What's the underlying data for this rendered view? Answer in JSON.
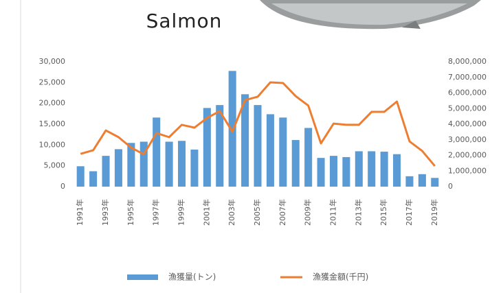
{
  "chart_data": {
    "type": "bar",
    "title": "Salmon",
    "categories": [
      "1991年",
      null,
      "1993年",
      null,
      "1995年",
      null,
      "1997年",
      null,
      "1999年",
      null,
      "2001年",
      null,
      "2003年",
      null,
      "2005年",
      null,
      "2007年",
      null,
      "2009年",
      null,
      "2011年",
      null,
      "2013年",
      null,
      "2015年",
      null,
      "2017年",
      null,
      "2019年"
    ],
    "series": [
      {
        "name": "漁獲量(トン)",
        "type": "bar",
        "color": "#5b9bd5",
        "values": [
          4900,
          3700,
          7400,
          9000,
          10500,
          10800,
          16600,
          10800,
          11000,
          8900,
          18900,
          19600,
          27800,
          22200,
          19600,
          17400,
          16600,
          11200,
          14100,
          6900,
          7400,
          7100,
          8500,
          8500,
          8400,
          7800,
          2500,
          3000,
          2100
        ]
      },
      {
        "name": "漁獲金額(千円)",
        "type": "line",
        "axis": "y2",
        "color": "#ed7d31",
        "values": [
          2100000,
          2330000,
          3600000,
          3170000,
          2500000,
          2070000,
          3430000,
          3170000,
          3960000,
          3780000,
          4400000,
          4840000,
          3520000,
          5540000,
          5760000,
          6680000,
          6640000,
          5800000,
          5190000,
          2770000,
          4040000,
          3960000,
          3960000,
          4790000,
          4790000,
          5450000,
          2900000,
          2290000,
          1320000
        ]
      }
    ],
    "ylim": [
      0,
      30000
    ],
    "yticks": [
      0,
      {
        "value": 5000,
        "label": "5,000"
      },
      {
        "value": 10000,
        "label": "10,000"
      },
      {
        "value": 15000,
        "label": "15,000"
      },
      {
        "value": 20000,
        "label": "20,000"
      },
      {
        "value": 25000,
        "label": "25,000"
      },
      {
        "value": 30000,
        "label": "30,000"
      }
    ],
    "y2lim": [
      0,
      8000000
    ],
    "y2ticks": [
      0,
      {
        "value": 1000000,
        "label": "1,000,000"
      },
      {
        "value": 2000000,
        "label": "2,000,000"
      },
      {
        "value": 3000000,
        "label": "3,000,000"
      },
      {
        "value": 4000000,
        "label": "4,000,000"
      },
      {
        "value": 5000000,
        "label": "5,000,000"
      },
      {
        "value": 6000000,
        "label": "6,000,000"
      },
      {
        "value": 7000000,
        "label": "7,000,000"
      },
      {
        "value": 8000000,
        "label": "8,000,000"
      }
    ],
    "legend": "bottom"
  }
}
